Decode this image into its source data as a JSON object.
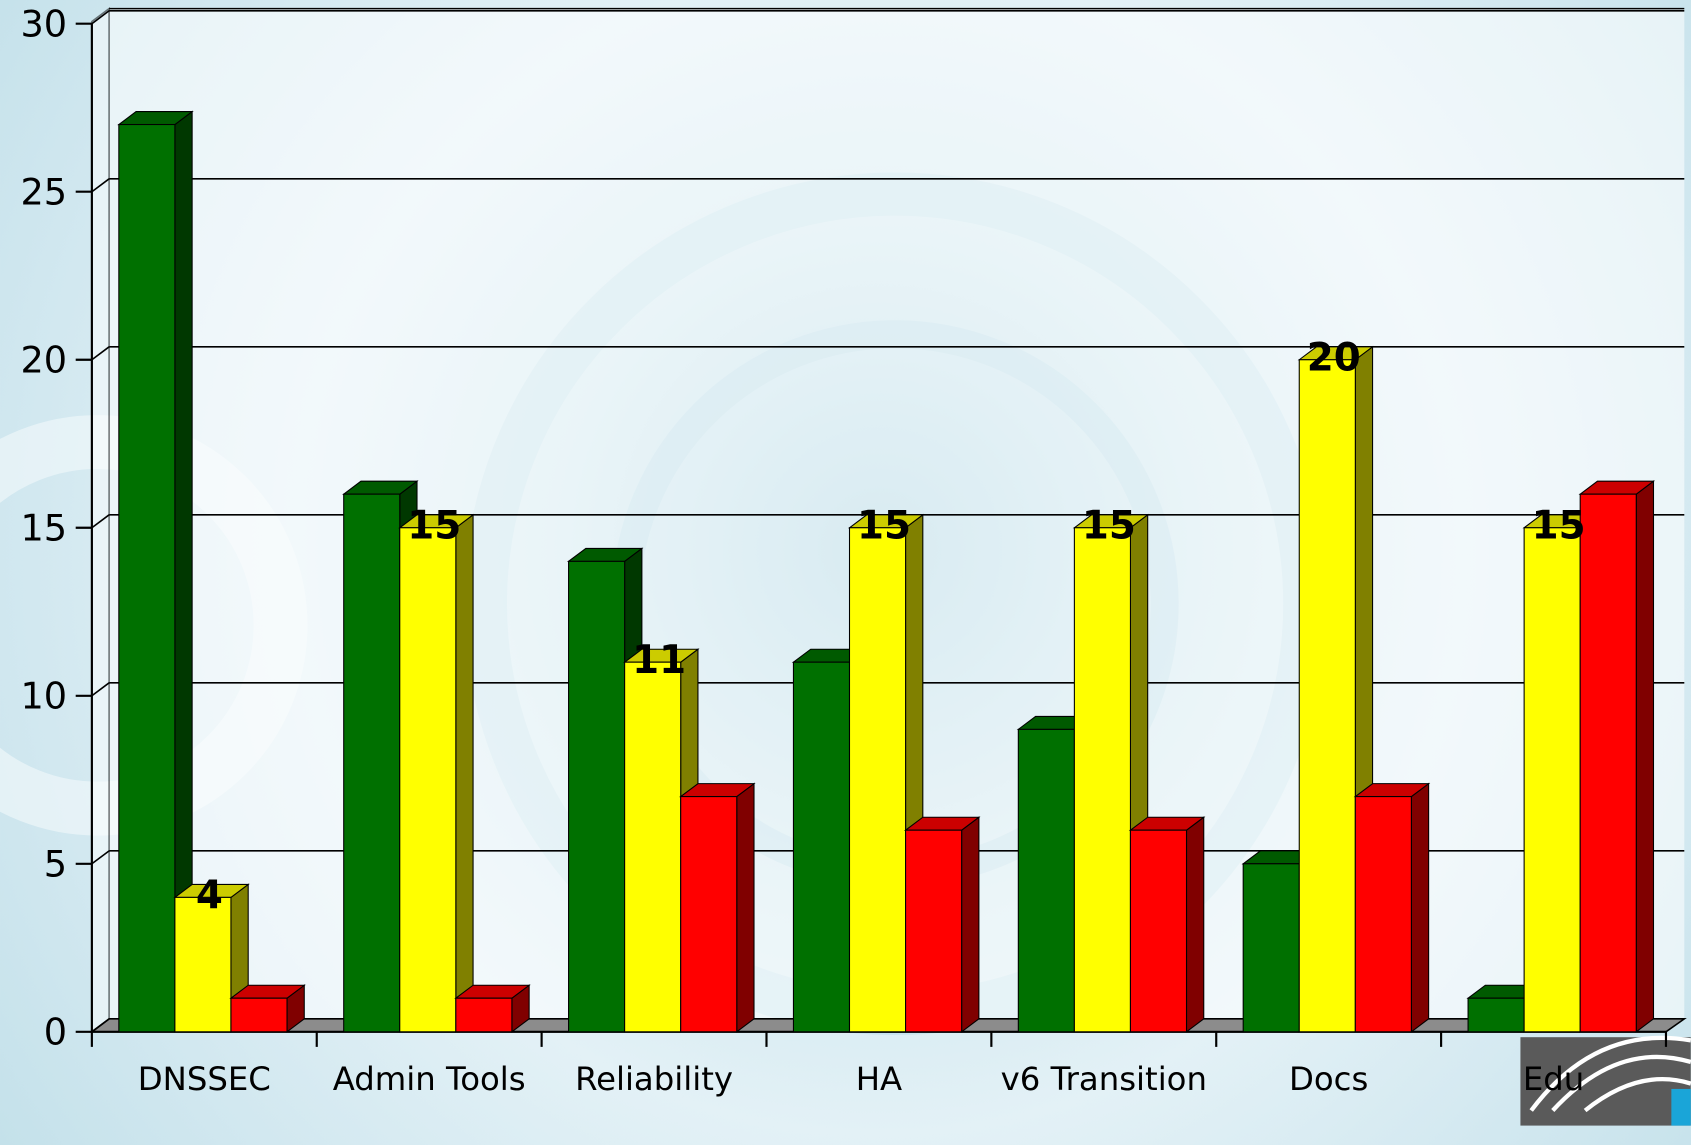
{
  "chart_data": {
    "type": "bar",
    "categories": [
      "DNSSEC",
      "Admin Tools",
      "Reliability",
      "HA",
      "v6 Transition",
      "Docs",
      "Edu"
    ],
    "series": [
      {
        "color": "#007000",
        "values": [
          27,
          16,
          14,
          11,
          9,
          5,
          1
        ]
      },
      {
        "color": "#ffff00",
        "values": [
          4,
          15,
          11,
          15,
          15,
          20,
          15
        ],
        "data_labels": true
      },
      {
        "color": "#ff0000",
        "values": [
          1,
          1,
          7,
          6,
          6,
          7,
          16
        ]
      }
    ],
    "ylim": [
      0,
      30
    ],
    "yticks": [
      0,
      5,
      10,
      15,
      20,
      25,
      30
    ],
    "grid": true
  }
}
